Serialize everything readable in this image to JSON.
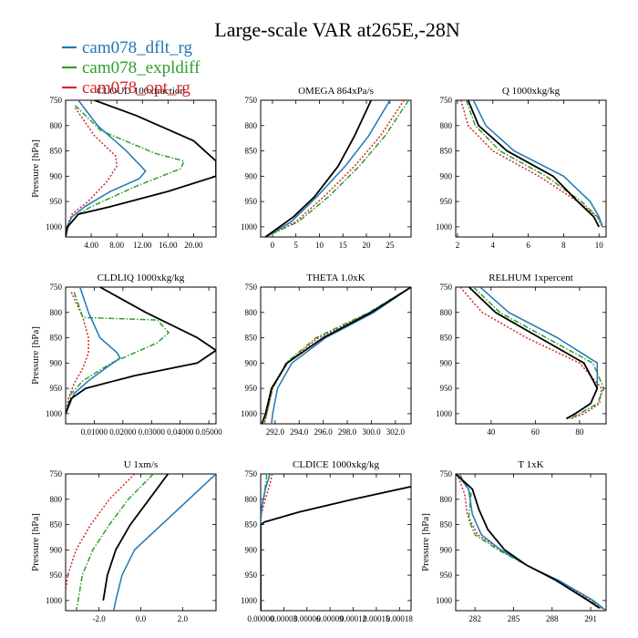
{
  "title": "Large-scale VAR at265E,-28N",
  "legend": [
    {
      "name": "cam078_dflt_rg",
      "color": "#1f77b4",
      "dash": "solid"
    },
    {
      "name": "cam078_expldiff",
      "color": "#2ca02c",
      "dash": "dashdot"
    },
    {
      "name": "cam078_opt_rg",
      "color": "#d62728",
      "dash": "dot"
    }
  ],
  "obs_color": "#000000",
  "chart_data": [
    {
      "type": "line",
      "title": "CLOUD 100xfraction",
      "ylabel": "Pressure [hPa]",
      "xlim": [
        0,
        23.5
      ],
      "ylim": [
        1020,
        750
      ],
      "xticks": [
        4,
        8,
        12,
        16,
        20
      ],
      "xticklabels": [
        "4.00",
        "8.00",
        "12.00",
        "16.00",
        "20.00"
      ],
      "yticks": [
        750,
        800,
        850,
        900,
        950,
        1000
      ],
      "yticklabels": [
        "750",
        "800",
        "850",
        "900",
        "950",
        "1000"
      ],
      "grid": false,
      "series": [
        {
          "key": "obs",
          "x": [
            4.5,
            11,
            20,
            23.5,
            23.5,
            16,
            7,
            2,
            0.3,
            0
          ],
          "y": [
            750,
            780,
            830,
            870,
            900,
            930,
            960,
            975,
            1000,
            1020
          ]
        },
        {
          "key": "dflt",
          "x": [
            2,
            5,
            9.5,
            12.5,
            11.5,
            7,
            3,
            1,
            0.2,
            0
          ],
          "y": [
            750,
            800,
            850,
            890,
            905,
            930,
            960,
            980,
            1000,
            1020
          ]
        },
        {
          "key": "expl",
          "x": [
            1.5,
            5.5,
            14,
            18.5,
            18,
            11,
            4,
            2,
            0.3,
            0
          ],
          "y": [
            760,
            810,
            855,
            870,
            885,
            920,
            960,
            975,
            1000,
            1020
          ]
        },
        {
          "key": "opt",
          "x": [
            1.5,
            4.5,
            7.8,
            8,
            6.5,
            3.5,
            1,
            0.2,
            0
          ],
          "y": [
            765,
            820,
            860,
            880,
            910,
            950,
            975,
            1000,
            1020
          ]
        }
      ]
    },
    {
      "type": "line",
      "title": "OMEGA  864xPa/s",
      "ylabel": "",
      "xlim": [
        -2.5,
        29.5
      ],
      "ylim": [
        1020,
        750
      ],
      "xticks": [
        0,
        5,
        10,
        15,
        20,
        25
      ],
      "xticklabels": [
        "0",
        "5",
        "10",
        "15",
        "20",
        "25"
      ],
      "yticks": [
        750,
        800,
        850,
        900,
        950,
        1000
      ],
      "yticklabels": [
        "750",
        "800",
        "850",
        "900",
        "950",
        "1000"
      ],
      "grid": false,
      "series": [
        {
          "key": "obs",
          "x": [
            21,
            17.5,
            14,
            9,
            4.5,
            -1.5
          ],
          "y": [
            750,
            820,
            880,
            940,
            980,
            1020
          ]
        },
        {
          "key": "dflt",
          "x": [
            25,
            20.5,
            15.5,
            9.5,
            4,
            -1.5
          ],
          "y": [
            750,
            820,
            880,
            940,
            990,
            1020
          ]
        },
        {
          "key": "expl",
          "x": [
            29,
            24,
            18.5,
            12,
            5.5,
            -1.5
          ],
          "y": [
            750,
            820,
            880,
            940,
            990,
            1020
          ]
        },
        {
          "key": "opt",
          "x": [
            28,
            23,
            17.5,
            11,
            5,
            -1.5
          ],
          "y": [
            750,
            820,
            880,
            940,
            990,
            1020
          ]
        }
      ]
    },
    {
      "type": "line",
      "title": "Q  1000xkg/kg",
      "ylabel": "",
      "xlim": [
        1.9,
        10.4
      ],
      "ylim": [
        1020,
        750
      ],
      "xticks": [
        2,
        4,
        6,
        8,
        10
      ],
      "xticklabels": [
        "2",
        "4",
        "6",
        "8",
        "10"
      ],
      "yticks": [
        750,
        800,
        850,
        900,
        950,
        1000
      ],
      "yticklabels": [
        "750",
        "800",
        "850",
        "900",
        "950",
        "1000"
      ],
      "grid": false,
      "series": [
        {
          "key": "obs",
          "x": [
            2.6,
            3.2,
            4.8,
            7.4,
            8.8,
            9.7,
            10
          ],
          "y": [
            750,
            800,
            850,
            900,
            950,
            980,
            1000
          ]
        },
        {
          "key": "dflt",
          "x": [
            2.9,
            3.6,
            5.2,
            8,
            9.5,
            10,
            10.2
          ],
          "y": [
            750,
            800,
            850,
            900,
            950,
            980,
            1000
          ]
        },
        {
          "key": "expl",
          "x": [
            2.5,
            3,
            4.4,
            7,
            9,
            9.9,
            10.2
          ],
          "y": [
            750,
            800,
            850,
            900,
            950,
            980,
            1000
          ]
        },
        {
          "key": "opt",
          "x": [
            2.2,
            2.6,
            4,
            6.6,
            8.8,
            9.9,
            10.2
          ],
          "y": [
            750,
            800,
            850,
            900,
            950,
            980,
            1000
          ]
        }
      ]
    },
    {
      "type": "line",
      "title": "CLDLIQ  1000xkg/kg",
      "ylabel": "Pressure [hPa]",
      "xlim": [
        0,
        0.0525
      ],
      "ylim": [
        1020,
        750
      ],
      "xticks": [
        0.01,
        0.02,
        0.03,
        0.04,
        0.05
      ],
      "xticklabels": [
        "0.01000",
        "0.02000",
        "0.03000",
        "0.04000",
        "0.05000"
      ],
      "yticks": [
        750,
        800,
        850,
        900,
        950,
        1000
      ],
      "yticklabels": [
        "750",
        "800",
        "850",
        "900",
        "950",
        "1000"
      ],
      "grid": false,
      "series": [
        {
          "key": "obs",
          "x": [
            0.012,
            0.028,
            0.046,
            0.0525,
            0.046,
            0.024,
            0.007,
            0.002,
            0
          ],
          "y": [
            750,
            800,
            850,
            875,
            900,
            925,
            950,
            970,
            1000
          ]
        },
        {
          "key": "dflt",
          "x": [
            0.005,
            0.008,
            0.012,
            0.018,
            0.019,
            0.014,
            0.008,
            0.003,
            0
          ],
          "y": [
            750,
            800,
            850,
            880,
            890,
            910,
            935,
            960,
            1000
          ]
        },
        {
          "key": "expl",
          "x": [
            0.003,
            0.006,
            0.032,
            0.036,
            0.032,
            0.016,
            0.006,
            0.002,
            0
          ],
          "y": [
            760,
            810,
            815,
            840,
            860,
            900,
            935,
            960,
            1000
          ]
        },
        {
          "key": "opt",
          "x": [
            0.002,
            0.006,
            0.008,
            0.008,
            0.006,
            0.003,
            0.001,
            0
          ],
          "y": [
            760,
            810,
            850,
            880,
            910,
            940,
            970,
            1000
          ]
        }
      ]
    },
    {
      "type": "line",
      "title": "THETA  1.0xK",
      "ylabel": "",
      "xlim": [
        290.8,
        303.3
      ],
      "ylim": [
        1020,
        750
      ],
      "xticks": [
        292,
        294,
        296,
        298,
        300,
        302
      ],
      "xticklabels": [
        "292.0",
        "294.0",
        "296.0",
        "298.0",
        "300.0",
        "302.0"
      ],
      "yticks": [
        750,
        800,
        850,
        900,
        950,
        1000
      ],
      "yticklabels": [
        "750",
        "800",
        "850",
        "900",
        "950",
        "1000"
      ],
      "grid": false,
      "series": [
        {
          "key": "obs",
          "x": [
            303.3,
            300,
            296,
            293,
            291.7,
            291.2,
            290.9
          ],
          "y": [
            750,
            800,
            850,
            900,
            950,
            1000,
            1020
          ]
        },
        {
          "key": "dflt",
          "x": [
            303.3,
            300.2,
            296.2,
            293.4,
            292.2,
            291.8,
            291.7
          ],
          "y": [
            750,
            800,
            850,
            900,
            950,
            1000,
            1020
          ]
        },
        {
          "key": "expl",
          "x": [
            303.3,
            299.8,
            295.4,
            292.9,
            291.8,
            291.3,
            291.1
          ],
          "y": [
            750,
            800,
            850,
            900,
            950,
            1000,
            1020
          ]
        },
        {
          "key": "opt",
          "x": [
            303.3,
            299.9,
            295.6,
            293,
            291.8,
            291.3,
            291.1
          ],
          "y": [
            750,
            800,
            850,
            900,
            950,
            1000,
            1020
          ]
        }
      ]
    },
    {
      "type": "line",
      "title": "RELHUM  1xpercent",
      "ylabel": "",
      "xlim": [
        24,
        92
      ],
      "ylim": [
        1020,
        750
      ],
      "xticks": [
        40,
        60,
        80
      ],
      "xticklabels": [
        "40",
        "60",
        "80"
      ],
      "yticks": [
        750,
        800,
        850,
        900,
        950,
        1000
      ],
      "yticklabels": [
        "750",
        "800",
        "850",
        "900",
        "950",
        "1000"
      ],
      "grid": false,
      "series": [
        {
          "key": "obs",
          "x": [
            30,
            42,
            62,
            82,
            88,
            85,
            78,
            74
          ],
          "y": [
            750,
            800,
            850,
            900,
            950,
            980,
            1000,
            1010
          ]
        },
        {
          "key": "dflt",
          "x": [
            35,
            48,
            70,
            88,
            88,
            85,
            78,
            74
          ],
          "y": [
            750,
            800,
            850,
            900,
            950,
            980,
            1000,
            1010
          ]
        },
        {
          "key": "expl",
          "x": [
            32,
            44,
            65,
            86,
            91,
            88,
            80,
            75
          ],
          "y": [
            750,
            800,
            850,
            900,
            950,
            980,
            1000,
            1010
          ]
        },
        {
          "key": "opt",
          "x": [
            26,
            36,
            56,
            80,
            90,
            89,
            82,
            76
          ],
          "y": [
            750,
            800,
            850,
            900,
            950,
            980,
            1000,
            1010
          ]
        }
      ]
    },
    {
      "type": "line",
      "title": "U  1xm/s",
      "ylabel": "Pressure [hPa]",
      "xlim": [
        -3.6,
        3.6
      ],
      "ylim": [
        1020,
        750
      ],
      "xticks": [
        -2,
        0,
        2
      ],
      "xticklabels": [
        "-2.0",
        "0.0",
        "2.0"
      ],
      "yticks": [
        750,
        800,
        850,
        900,
        950,
        1000
      ],
      "yticklabels": [
        "750",
        "800",
        "850",
        "900",
        "950",
        "1000"
      ],
      "grid": false,
      "series": [
        {
          "key": "obs",
          "x": [
            1.3,
            0.4,
            -0.5,
            -1.2,
            -1.6,
            -1.8
          ],
          "y": [
            750,
            800,
            850,
            900,
            950,
            1000
          ]
        },
        {
          "key": "dflt",
          "x": [
            3.6,
            2.3,
            1,
            -0.3,
            -0.9,
            -1.2,
            -1.3
          ],
          "y": [
            750,
            800,
            850,
            900,
            950,
            1000,
            1020
          ]
        },
        {
          "key": "expl",
          "x": [
            0.6,
            -0.6,
            -1.5,
            -2.3,
            -2.8,
            -3,
            -3.1
          ],
          "y": [
            750,
            800,
            850,
            900,
            950,
            1000,
            1020
          ]
        },
        {
          "key": "opt",
          "x": [
            -0.3,
            -1.5,
            -2.4,
            -3.1,
            -3.5,
            -3.6
          ],
          "y": [
            750,
            800,
            850,
            900,
            950,
            980
          ]
        }
      ]
    },
    {
      "type": "line",
      "title": "CLDICE  1000xkg/kg",
      "ylabel": "",
      "xlim": [
        0,
        0.000195
      ],
      "ylim": [
        1020,
        750
      ],
      "xticks": [
        0,
        3e-05,
        6e-05,
        9e-05,
        0.00012,
        0.00015,
        0.00018
      ],
      "xticklabels": [
        "0.00000",
        "0.00003",
        "0.00006",
        "0.00009",
        "0.00012",
        "0.00015",
        "0.00018"
      ],
      "yticks": [
        750,
        800,
        850,
        900,
        950,
        1000
      ],
      "yticklabels": [
        "750",
        "800",
        "850",
        "900",
        "950",
        "1000"
      ],
      "grid": false,
      "series": [
        {
          "key": "obs",
          "x": [
            0.000195,
            0.00012,
            5e-05,
            5e-06,
            0,
            0
          ],
          "y": [
            775,
            800,
            825,
            845,
            850,
            1020
          ]
        },
        {
          "key": "dflt",
          "x": [
            1.2e-05,
            6e-06,
            2e-06,
            0,
            0
          ],
          "y": [
            750,
            780,
            810,
            840,
            1020
          ]
        },
        {
          "key": "expl",
          "x": [
            8e-06,
            5e-06,
            1e-06,
            0,
            0
          ],
          "y": [
            750,
            790,
            820,
            850,
            1020
          ]
        },
        {
          "key": "opt",
          "x": [
            1.5e-05,
            1.2e-05,
            6e-06,
            1e-06,
            0,
            0
          ],
          "y": [
            750,
            770,
            800,
            830,
            850,
            1020
          ]
        }
      ]
    },
    {
      "type": "line",
      "title": "T  1xK",
      "ylabel": "Pressure [hPa]",
      "xlim": [
        280.5,
        292.2
      ],
      "ylim": [
        1020,
        750
      ],
      "xticks": [
        282,
        285,
        288,
        291
      ],
      "xticklabels": [
        "282",
        "285",
        "288",
        "291"
      ],
      "yticks": [
        750,
        800,
        850,
        900,
        950,
        1000
      ],
      "yticklabels": [
        "750",
        "800",
        "850",
        "900",
        "950",
        "1000"
      ],
      "grid": false,
      "series": [
        {
          "key": "obs",
          "x": [
            280.5,
            281.8,
            282.3,
            283,
            284.3,
            286,
            288.3,
            290.8,
            291.7
          ],
          "y": [
            750,
            780,
            820,
            860,
            900,
            930,
            960,
            1000,
            1015
          ]
        },
        {
          "key": "dflt",
          "x": [
            280.6,
            281.5,
            281.8,
            282.5,
            284,
            286,
            288.5,
            291.2,
            292.2
          ],
          "y": [
            750,
            780,
            830,
            870,
            900,
            930,
            960,
            1000,
            1020
          ]
        },
        {
          "key": "expl",
          "x": [
            280.8,
            281.7,
            281.5,
            282,
            283.8,
            286,
            288.3,
            290.9,
            291.9
          ],
          "y": [
            750,
            790,
            840,
            870,
            900,
            930,
            960,
            1000,
            1015
          ]
        },
        {
          "key": "opt",
          "x": [
            280.6,
            281.2,
            281.4,
            282.2,
            284,
            286,
            288.4,
            291,
            292
          ],
          "y": [
            750,
            790,
            830,
            870,
            900,
            930,
            960,
            1000,
            1018
          ]
        }
      ]
    }
  ]
}
